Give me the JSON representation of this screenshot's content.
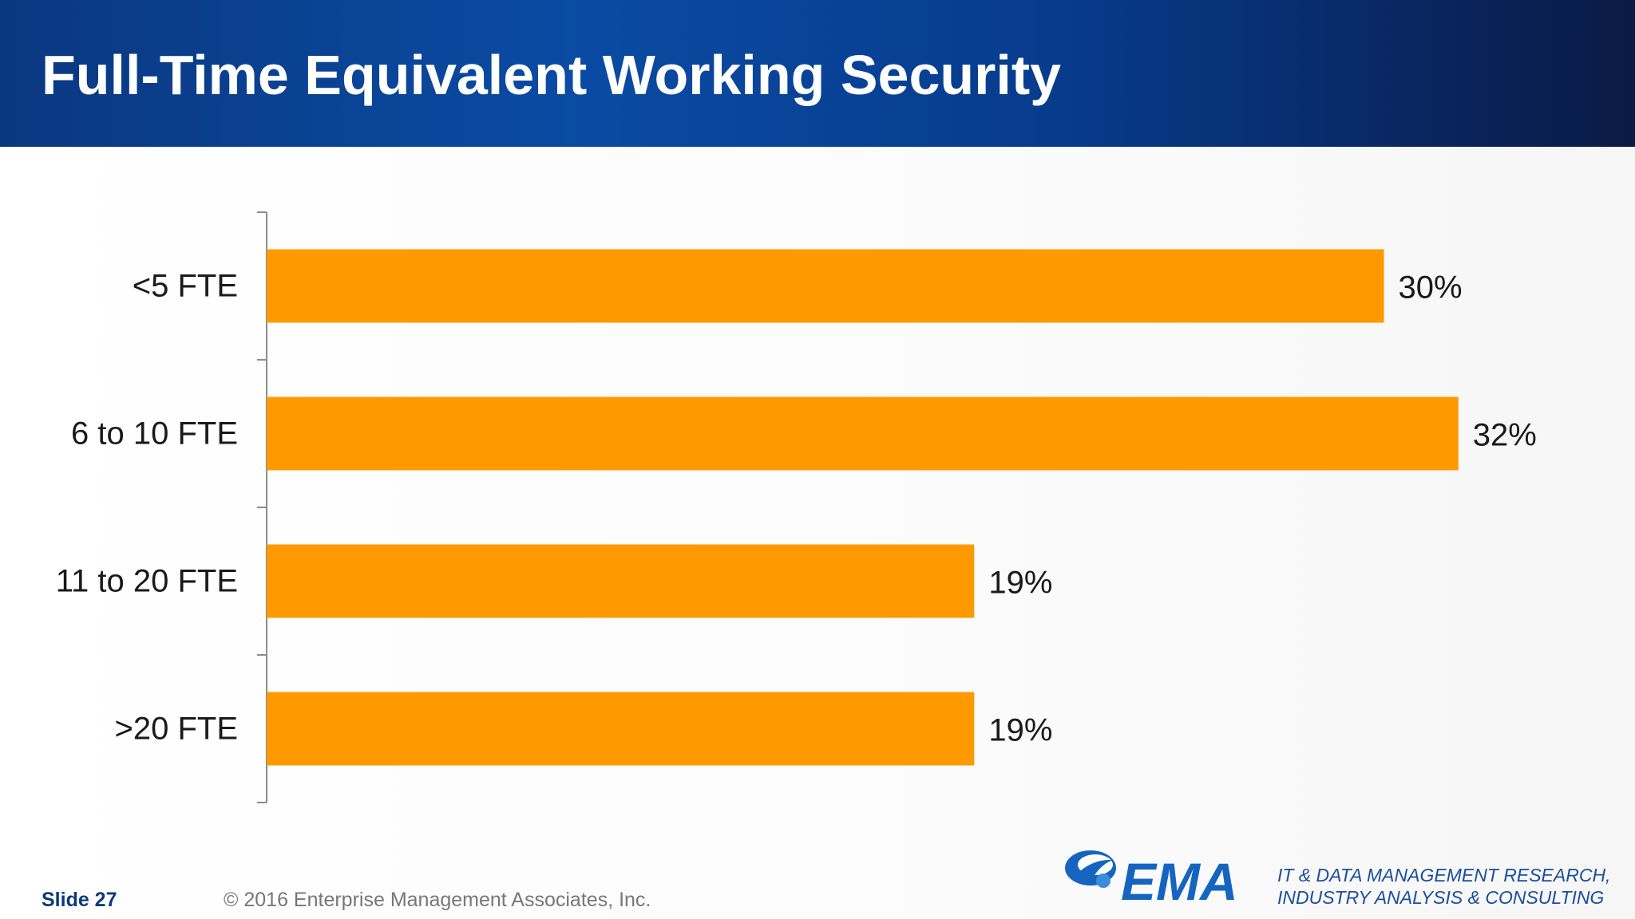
{
  "header": {
    "title": "Full-Time Equivalent Working Security"
  },
  "chart_data": {
    "type": "bar",
    "orientation": "horizontal",
    "categories": [
      "<5 FTE",
      "6 to 10 FTE",
      "11 to 20 FTE",
      ">20 FTE"
    ],
    "values": [
      30,
      32,
      19,
      19
    ],
    "value_labels": [
      "30%",
      "32%",
      "19%",
      "19%"
    ],
    "title": "",
    "xlabel": "",
    "ylabel": "",
    "xlim": [
      0,
      35
    ],
    "grid": false,
    "legend": "none",
    "bar_color": "#ff9900"
  },
  "footer": {
    "slide_label": "Slide 27",
    "copyright": "© 2016 Enterprise Management Associates, Inc.",
    "logo_text": "EMA",
    "tagline_line1": "IT & DATA MANAGEMENT RESEARCH,",
    "tagline_line2": "INDUSTRY ANALYSIS & CONSULTING"
  },
  "colors": {
    "header_blue": "#0a4ba3",
    "bar_orange": "#ff9900",
    "logo_blue": "#1565c0",
    "text_dark": "#1a1a1a"
  }
}
